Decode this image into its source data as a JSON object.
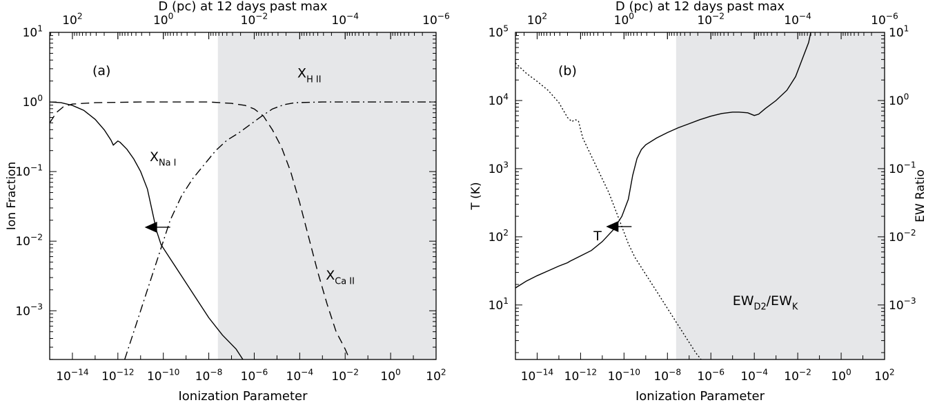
{
  "chart_data": [
    {
      "type": "line",
      "panel_label": "(a)",
      "xlabel": "Ionization Parameter",
      "ylabel": "Ion Fraction",
      "top_axis_label": "D (pc) at 12 days past max",
      "xscale": "log",
      "yscale": "log",
      "xlim": [
        -15,
        2
      ],
      "ylim": [
        -3.7,
        1
      ],
      "x_ticks": [
        -14,
        -12,
        -10,
        -8,
        -6,
        -4,
        -2,
        0,
        2
      ],
      "y_ticks": [
        -3,
        -2,
        -1,
        0,
        1
      ],
      "top_ticks": [
        2,
        0,
        -2,
        -4,
        -6
      ],
      "shaded_xrange": [
        -7.6,
        2
      ],
      "arrow": {
        "x": -10.7,
        "y": -1.8,
        "direction": "left"
      },
      "series": [
        {
          "name_main": "X",
          "name_sub": "Na I",
          "style": "solid",
          "label_pos": [
            -10.6,
            -0.85
          ],
          "points": [
            [
              -15,
              0.0
            ],
            [
              -14.5,
              -0.01
            ],
            [
              -14,
              -0.05
            ],
            [
              -13.5,
              -0.12
            ],
            [
              -13,
              -0.25
            ],
            [
              -12.6,
              -0.4
            ],
            [
              -12.3,
              -0.55
            ],
            [
              -12.2,
              -0.62
            ],
            [
              -12,
              -0.56
            ],
            [
              -11.9,
              -0.58
            ],
            [
              -11.6,
              -0.68
            ],
            [
              -11.3,
              -0.82
            ],
            [
              -11,
              -1.0
            ],
            [
              -10.7,
              -1.25
            ],
            [
              -10.5,
              -1.55
            ],
            [
              -10.3,
              -1.85
            ],
            [
              -10.1,
              -2.05
            ],
            [
              -9.7,
              -2.25
            ],
            [
              -9.2,
              -2.5
            ],
            [
              -8.6,
              -2.8
            ],
            [
              -8,
              -3.1
            ],
            [
              -7.4,
              -3.35
            ],
            [
              -6.8,
              -3.55
            ],
            [
              -6.5,
              -3.7
            ]
          ]
        },
        {
          "name_main": "X",
          "name_sub": "H II",
          "style": "dashdot",
          "label_pos": [
            -4.1,
            0.35
          ],
          "points": [
            [
              -11.7,
              -3.7
            ],
            [
              -11.2,
              -3.2
            ],
            [
              -10.7,
              -2.7
            ],
            [
              -10.2,
              -2.2
            ],
            [
              -9.7,
              -1.7
            ],
            [
              -9.2,
              -1.35
            ],
            [
              -8.7,
              -1.1
            ],
            [
              -8.2,
              -0.9
            ],
            [
              -7.7,
              -0.7
            ],
            [
              -7.2,
              -0.55
            ],
            [
              -6.7,
              -0.45
            ],
            [
              -6.2,
              -0.33
            ],
            [
              -5.7,
              -0.21
            ],
            [
              -5.2,
              -0.1
            ],
            [
              -4.7,
              -0.04
            ],
            [
              -4.2,
              -0.01
            ],
            [
              -3,
              0
            ],
            [
              2,
              0
            ]
          ]
        },
        {
          "name_main": "X",
          "name_sub": "Ca II",
          "style": "dashed",
          "label_pos": [
            -2.85,
            -2.55
          ],
          "points": [
            [
              -15,
              -0.3
            ],
            [
              -14.7,
              -0.15
            ],
            [
              -14.4,
              -0.07
            ],
            [
              -14,
              -0.03
            ],
            [
              -13,
              -0.01
            ],
            [
              -11,
              0
            ],
            [
              -8,
              0
            ],
            [
              -7,
              -0.02
            ],
            [
              -6.4,
              -0.05
            ],
            [
              -6,
              -0.1
            ],
            [
              -5.6,
              -0.2
            ],
            [
              -5.2,
              -0.4
            ],
            [
              -4.8,
              -0.65
            ],
            [
              -4.4,
              -1.0
            ],
            [
              -4.0,
              -1.45
            ],
            [
              -3.6,
              -1.95
            ],
            [
              -3.2,
              -2.45
            ],
            [
              -2.8,
              -2.9
            ],
            [
              -2.4,
              -3.3
            ],
            [
              -2.0,
              -3.55
            ],
            [
              -1.8,
              -3.7
            ]
          ]
        }
      ]
    },
    {
      "type": "line",
      "panel_label": "(b)",
      "xlabel": "Ionization Parameter",
      "ylabel": "T (K)",
      "ylabel_right": "EW Ratio",
      "top_axis_label": "D (pc) at 12 days past max",
      "xscale": "log",
      "yscale": "log",
      "xlim": [
        -15,
        2
      ],
      "ylim": [
        0.2,
        5
      ],
      "ylim_right": [
        -3.8,
        1
      ],
      "x_ticks": [
        -14,
        -12,
        -10,
        -8,
        -6,
        -4,
        -2,
        0,
        2
      ],
      "y_ticks": [
        1,
        2,
        3,
        4,
        5
      ],
      "y_ticks_right": [
        -3,
        -2,
        -1,
        0,
        1
      ],
      "top_ticks": [
        2,
        0,
        -2,
        -4,
        -6
      ],
      "shaded_xrange": [
        -7.6,
        2
      ],
      "arrow": {
        "x": -10.7,
        "y": 2.15,
        "direction": "left"
      },
      "series": [
        {
          "name_main": "T",
          "name_sub": "",
          "style": "solid",
          "label_pos": [
            -11.4,
            1.95
          ],
          "points": [
            [
              -15,
              1.25
            ],
            [
              -14.5,
              1.35
            ],
            [
              -14,
              1.43
            ],
            [
              -13.5,
              1.5
            ],
            [
              -13,
              1.57
            ],
            [
              -12.6,
              1.62
            ],
            [
              -12.5,
              1.64
            ],
            [
              -12,
              1.72
            ],
            [
              -11.5,
              1.8
            ],
            [
              -11,
              1.93
            ],
            [
              -10.5,
              2.1
            ],
            [
              -10.1,
              2.3
            ],
            [
              -9.8,
              2.55
            ],
            [
              -9.6,
              2.9
            ],
            [
              -9.4,
              3.15
            ],
            [
              -9.2,
              3.28
            ],
            [
              -9,
              3.35
            ],
            [
              -8.5,
              3.45
            ],
            [
              -8,
              3.53
            ],
            [
              -7.5,
              3.6
            ],
            [
              -7,
              3.66
            ],
            [
              -6.5,
              3.72
            ],
            [
              -6,
              3.77
            ],
            [
              -5.5,
              3.81
            ],
            [
              -5,
              3.83
            ],
            [
              -4.7,
              3.83
            ],
            [
              -4.3,
              3.82
            ],
            [
              -4,
              3.78
            ],
            [
              -3.8,
              3.8
            ],
            [
              -3.5,
              3.88
            ],
            [
              -3,
              4.0
            ],
            [
              -2.5,
              4.15
            ],
            [
              -2.1,
              4.35
            ],
            [
              -1.8,
              4.6
            ],
            [
              -1.5,
              4.85
            ],
            [
              -1.4,
              5.0
            ]
          ]
        },
        {
          "name_main": "EW",
          "name_sub": "D2",
          "name_main2": "EW",
          "name_sub2": "K",
          "style": "dotted",
          "label_pos": [
            -5,
            1.0
          ],
          "points": [
            [
              -15,
              4.55
            ],
            [
              -14.5,
              4.4
            ],
            [
              -14,
              4.28
            ],
            [
              -13.5,
              4.15
            ],
            [
              -13,
              3.97
            ],
            [
              -12.6,
              3.75
            ],
            [
              -12.4,
              3.69
            ],
            [
              -12.25,
              3.72
            ],
            [
              -12.1,
              3.7
            ],
            [
              -11.9,
              3.45
            ],
            [
              -11.6,
              3.25
            ],
            [
              -11.3,
              3.05
            ],
            [
              -11,
              2.85
            ],
            [
              -10.7,
              2.65
            ],
            [
              -10.4,
              2.4
            ],
            [
              -10.1,
              2.15
            ],
            [
              -9.8,
              1.9
            ],
            [
              -9.5,
              1.7
            ],
            [
              -9,
              1.45
            ],
            [
              -8.5,
              1.2
            ],
            [
              -8,
              0.95
            ],
            [
              -7.5,
              0.7
            ],
            [
              -7,
              0.45
            ],
            [
              -6.7,
              0.3
            ],
            [
              -6.45,
              0.2
            ]
          ]
        }
      ]
    }
  ]
}
